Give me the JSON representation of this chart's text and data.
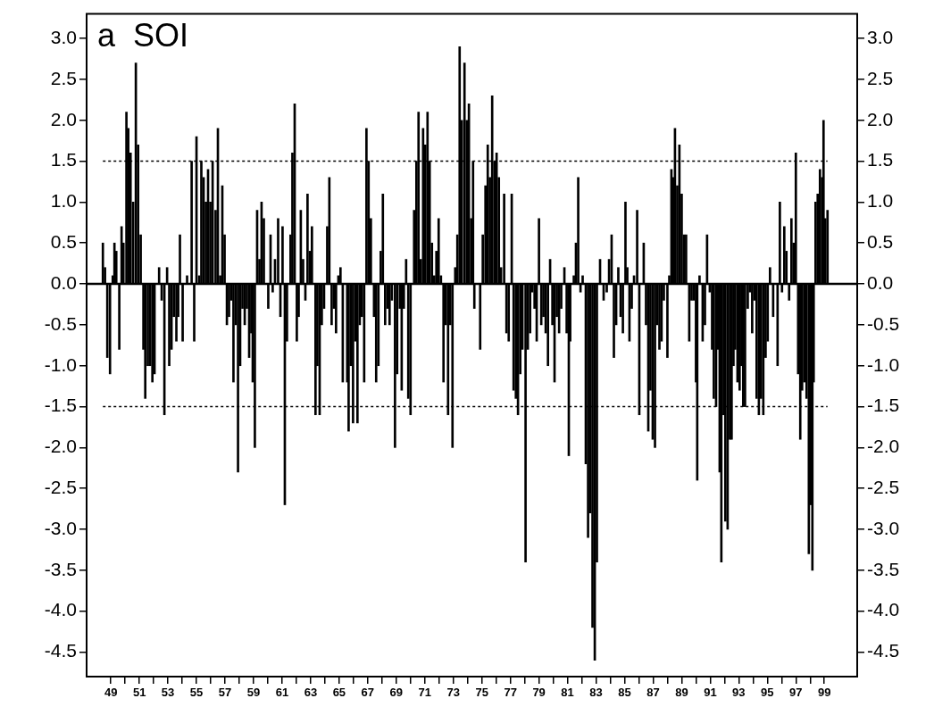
{
  "chart_data": {
    "type": "bar",
    "title": "a  SOI",
    "color": "#000000",
    "legend": false,
    "grid": false,
    "x": [
      1948.44,
      1948.59,
      1948.75,
      1948.94,
      1949.13,
      1949.25,
      1949.38,
      1949.59,
      1949.75,
      1949.88,
      1950.09,
      1950.22,
      1950.38,
      1950.56,
      1950.75,
      1950.91,
      1951.09,
      1951.28,
      1951.41,
      1951.59,
      1951.75,
      1951.91,
      1952.06,
      1952.38,
      1952.56,
      1952.75,
      1952.94,
      1953.09,
      1953.25,
      1953.41,
      1953.59,
      1953.72,
      1953.84,
      1954.03,
      1954.34,
      1954.66,
      1954.84,
      1955.0,
      1955.19,
      1955.34,
      1955.5,
      1955.66,
      1955.81,
      1955.97,
      1956.13,
      1956.34,
      1956.5,
      1956.66,
      1956.81,
      1956.97,
      1957.13,
      1957.28,
      1957.44,
      1957.59,
      1957.75,
      1957.91,
      1958.06,
      1958.22,
      1958.38,
      1958.53,
      1958.69,
      1958.84,
      1958.94,
      1959.09,
      1959.25,
      1959.41,
      1959.56,
      1959.72,
      1960.03,
      1960.19,
      1960.34,
      1960.5,
      1960.72,
      1960.88,
      1961.03,
      1961.19,
      1961.34,
      1961.59,
      1961.72,
      1961.88,
      1962.03,
      1962.16,
      1962.31,
      1962.47,
      1962.63,
      1962.78,
      1962.94,
      1963.09,
      1963.34,
      1963.47,
      1963.63,
      1963.78,
      1963.94,
      1964.16,
      1964.31,
      1964.47,
      1964.63,
      1964.78,
      1964.94,
      1965.09,
      1965.25,
      1965.56,
      1965.66,
      1965.81,
      1965.97,
      1966.13,
      1966.28,
      1966.44,
      1966.59,
      1966.75,
      1966.91,
      1967.06,
      1967.22,
      1967.44,
      1967.59,
      1967.75,
      1967.91,
      1968.06,
      1968.22,
      1968.38,
      1968.53,
      1968.69,
      1968.91,
      1969.06,
      1969.25,
      1969.38,
      1969.53,
      1969.69,
      1969.84,
      1970.0,
      1970.25,
      1970.41,
      1970.56,
      1970.72,
      1970.88,
      1971.03,
      1971.19,
      1971.34,
      1971.5,
      1971.66,
      1971.81,
      1971.97,
      1972.13,
      1972.31,
      1972.47,
      1972.63,
      1972.78,
      1972.94,
      1973.13,
      1973.28,
      1973.44,
      1973.59,
      1973.78,
      1973.94,
      1974.09,
      1974.25,
      1974.38,
      1974.47,
      1974.88,
      1975.06,
      1975.25,
      1975.41,
      1975.56,
      1975.72,
      1975.88,
      1976.03,
      1976.19,
      1976.34,
      1976.56,
      1976.72,
      1976.88,
      1977.09,
      1977.22,
      1977.38,
      1977.53,
      1977.69,
      1977.84,
      1978.06,
      1978.22,
      1978.38,
      1978.53,
      1978.69,
      1978.84,
      1979.0,
      1979.16,
      1979.31,
      1979.47,
      1979.63,
      1979.78,
      1979.94,
      1980.09,
      1980.25,
      1980.41,
      1980.56,
      1980.78,
      1980.94,
      1981.09,
      1981.19,
      1981.44,
      1981.59,
      1981.75,
      1981.91,
      1982.06,
      1982.28,
      1982.44,
      1982.59,
      1982.75,
      1982.91,
      1983.06,
      1983.28,
      1983.53,
      1983.75,
      1983.91,
      1984.09,
      1984.25,
      1984.41,
      1984.56,
      1984.72,
      1984.88,
      1985.06,
      1985.19,
      1985.34,
      1985.5,
      1985.66,
      1985.88,
      1986.03,
      1986.34,
      1986.5,
      1986.66,
      1986.81,
      1986.97,
      1987.13,
      1987.28,
      1987.44,
      1987.59,
      1987.75,
      1988.0,
      1988.13,
      1988.28,
      1988.41,
      1988.53,
      1988.69,
      1988.84,
      1989.0,
      1989.16,
      1989.31,
      1989.53,
      1989.69,
      1989.84,
      1990.0,
      1990.09,
      1990.25,
      1990.47,
      1990.63,
      1990.78,
      1990.97,
      1991.13,
      1991.25,
      1991.41,
      1991.56,
      1991.66,
      1991.78,
      1991.94,
      1992.06,
      1992.22,
      1992.38,
      1992.5,
      1992.63,
      1992.75,
      1992.91,
      1993.06,
      1993.19,
      1993.31,
      1993.44,
      1993.63,
      1993.78,
      1993.94,
      1994.09,
      1994.25,
      1994.41,
      1994.56,
      1994.72,
      1994.88,
      1995.03,
      1995.19,
      1995.41,
      1995.72,
      1995.88,
      1996.03,
      1996.19,
      1996.34,
      1996.53,
      1996.69,
      1996.84,
      1997.0,
      1997.16,
      1997.31,
      1997.44,
      1997.59,
      1997.75,
      1997.91,
      1998.03,
      1998.16,
      1998.25,
      1998.38,
      1998.53,
      1998.69,
      1998.84,
      1998.94,
      1999.06,
      1999.22
    ],
    "values": [
      0.5,
      0.2,
      -0.9,
      -1.1,
      0.1,
      0.5,
      0.4,
      -0.8,
      0.7,
      0.5,
      2.1,
      1.9,
      1.6,
      1.0,
      2.7,
      1.7,
      0.6,
      -0.8,
      -1.4,
      -1.0,
      -1.0,
      -1.2,
      -1.1,
      0.2,
      -0.2,
      -1.6,
      0.2,
      -1.0,
      -0.8,
      -0.4,
      -0.7,
      -0.4,
      0.6,
      -0.7,
      0.1,
      1.5,
      -0.7,
      1.8,
      0.1,
      1.5,
      1.3,
      1.0,
      1.4,
      1.0,
      1.5,
      0.9,
      1.9,
      0.1,
      1.2,
      0.6,
      -0.5,
      -0.4,
      -0.2,
      -1.2,
      -0.5,
      -2.3,
      -1.0,
      -0.3,
      -0.5,
      -0.3,
      -0.9,
      -0.6,
      -1.2,
      -2.0,
      0.9,
      0.3,
      1.0,
      0.8,
      -0.3,
      0.6,
      -0.1,
      0.3,
      0.8,
      -0.4,
      0.7,
      -2.7,
      -0.7,
      0.6,
      1.6,
      2.2,
      -0.7,
      -0.4,
      0.9,
      0.3,
      -0.2,
      1.1,
      0.4,
      0.7,
      -1.6,
      -1.0,
      -1.6,
      -0.5,
      -0.3,
      0.7,
      1.3,
      -0.5,
      -0.3,
      -0.6,
      0.1,
      0.2,
      -1.2,
      -1.2,
      -1.8,
      -1.0,
      -1.7,
      -0.7,
      -1.7,
      -0.5,
      -0.4,
      -1.2,
      1.9,
      1.5,
      0.8,
      -0.4,
      -1.2,
      -1.0,
      0.4,
      1.1,
      -0.5,
      -0.3,
      -0.5,
      -0.2,
      -2.0,
      -1.1,
      -0.3,
      -1.3,
      -0.3,
      0.3,
      -1.4,
      -1.6,
      0.9,
      1.5,
      2.1,
      0.3,
      1.9,
      1.7,
      2.1,
      1.5,
      0.5,
      0.1,
      0.4,
      0.8,
      0.1,
      -1.2,
      -0.5,
      -1.6,
      -0.5,
      -2.0,
      0.2,
      0.6,
      2.9,
      2.0,
      2.7,
      2.0,
      2.2,
      0.8,
      1.5,
      -0.3,
      -0.8,
      0.6,
      1.2,
      1.7,
      1.3,
      2.3,
      1.5,
      1.6,
      1.3,
      0.2,
      1.1,
      -0.6,
      -0.7,
      1.1,
      -1.3,
      -1.4,
      -1.6,
      -1.1,
      -0.8,
      -3.4,
      -0.8,
      -0.6,
      -0.1,
      -0.3,
      -0.7,
      0.8,
      -0.5,
      -0.4,
      -0.6,
      -1.0,
      0.3,
      -0.5,
      -1.2,
      -0.4,
      -0.6,
      -0.3,
      0.2,
      -0.6,
      -2.1,
      -0.7,
      0.1,
      0.5,
      1.3,
      -0.1,
      0.1,
      -2.2,
      -3.1,
      -2.8,
      -4.2,
      -4.6,
      -3.4,
      0.3,
      -0.2,
      -0.1,
      0.3,
      0.6,
      -0.9,
      -0.5,
      0.2,
      -0.4,
      -0.6,
      1.0,
      0.2,
      -0.7,
      -0.3,
      0.1,
      0.9,
      -1.6,
      0.5,
      -0.5,
      -1.8,
      -1.3,
      -1.9,
      -2.0,
      -0.5,
      -0.8,
      -0.7,
      -0.2,
      -0.9,
      0.1,
      1.4,
      1.3,
      1.9,
      1.2,
      1.7,
      1.1,
      0.6,
      0.6,
      -0.7,
      -0.2,
      -0.2,
      -1.2,
      -2.4,
      0.1,
      -0.7,
      -0.5,
      0.6,
      -0.1,
      -0.8,
      -1.4,
      -1.5,
      -0.8,
      -2.3,
      -3.4,
      -1.6,
      -2.9,
      -3.0,
      -1.9,
      -1.9,
      -1.0,
      -0.8,
      -1.2,
      -1.3,
      -1.0,
      -1.5,
      -1.5,
      -0.3,
      -0.1,
      -0.6,
      -0.2,
      -1.4,
      -1.6,
      -1.4,
      -1.6,
      -0.9,
      -0.7,
      0.2,
      -0.4,
      -1.0,
      1.0,
      -0.1,
      0.7,
      0.4,
      -0.2,
      0.8,
      0.5,
      1.6,
      -1.1,
      -1.9,
      -1.3,
      -1.2,
      -1.4,
      -3.3,
      -2.7,
      -3.5,
      -1.2,
      1.0,
      1.1,
      1.4,
      1.3,
      2.0,
      0.8,
      0.9
    ],
    "xlim": [
      1947.3,
      2001.3
    ],
    "xticks": [
      {
        "value": 1949,
        "label": "49"
      },
      {
        "value": 1950,
        "label": null
      },
      {
        "value": 1951,
        "label": "51"
      },
      {
        "value": 1952,
        "label": null
      },
      {
        "value": 1953,
        "label": "53"
      },
      {
        "value": 1954,
        "label": null
      },
      {
        "value": 1955,
        "label": "55"
      },
      {
        "value": 1956,
        "label": null
      },
      {
        "value": 1957,
        "label": "57"
      },
      {
        "value": 1958,
        "label": null
      },
      {
        "value": 1959,
        "label": "59"
      },
      {
        "value": 1960,
        "label": null
      },
      {
        "value": 1961,
        "label": "61"
      },
      {
        "value": 1962,
        "label": null
      },
      {
        "value": 1963,
        "label": "63"
      },
      {
        "value": 1964,
        "label": null
      },
      {
        "value": 1965,
        "label": "65"
      },
      {
        "value": 1966,
        "label": null
      },
      {
        "value": 1967,
        "label": "67"
      },
      {
        "value": 1968,
        "label": null
      },
      {
        "value": 1969,
        "label": "69"
      },
      {
        "value": 1970,
        "label": null
      },
      {
        "value": 1971,
        "label": "71"
      },
      {
        "value": 1972,
        "label": null
      },
      {
        "value": 1973,
        "label": "73"
      },
      {
        "value": 1974,
        "label": null
      },
      {
        "value": 1975,
        "label": "75"
      },
      {
        "value": 1976,
        "label": null
      },
      {
        "value": 1977,
        "label": "77"
      },
      {
        "value": 1978,
        "label": null
      },
      {
        "value": 1979,
        "label": "79"
      },
      {
        "value": 1980,
        "label": null
      },
      {
        "value": 1981,
        "label": "81"
      },
      {
        "value": 1982,
        "label": null
      },
      {
        "value": 1983,
        "label": "83"
      },
      {
        "value": 1984,
        "label": null
      },
      {
        "value": 1985,
        "label": "85"
      },
      {
        "value": 1986,
        "label": null
      },
      {
        "value": 1987,
        "label": "87"
      },
      {
        "value": 1988,
        "label": null
      },
      {
        "value": 1989,
        "label": "89"
      },
      {
        "value": 1990,
        "label": null
      },
      {
        "value": 1991,
        "label": "91"
      },
      {
        "value": 1992,
        "label": null
      },
      {
        "value": 1993,
        "label": "93"
      },
      {
        "value": 1994,
        "label": null
      },
      {
        "value": 1995,
        "label": "95"
      },
      {
        "value": 1996,
        "label": null
      },
      {
        "value": 1997,
        "label": "97"
      },
      {
        "value": 1998,
        "label": null
      },
      {
        "value": 1999,
        "label": "99"
      }
    ],
    "ylim": [
      -4.8,
      3.3
    ],
    "yticks": [
      {
        "value": 3,
        "label": "3.0"
      },
      2.5,
      {
        "value": 2,
        "label": "2.0"
      },
      1.5,
      {
        "value": 1,
        "label": "1.0"
      },
      0.5,
      {
        "value": 0,
        "label": "0.0"
      },
      -0.5,
      {
        "value": -1,
        "label": "-1.0"
      },
      -1.5,
      {
        "value": -2,
        "label": "-2.0"
      },
      -2.5,
      {
        "value": -3,
        "label": "-3.0"
      },
      -3.5,
      {
        "value": -4,
        "label": "-4.0"
      },
      -4.5
    ],
    "y2lim": [
      -4.8,
      3.3
    ],
    "y2ticks": [
      {
        "value": 3,
        "label": "3.0"
      },
      2.5,
      {
        "value": 2,
        "label": "2.0"
      },
      1.5,
      {
        "value": 1,
        "label": "1.0"
      },
      0.5,
      {
        "value": 0,
        "label": "0.0"
      },
      -0.5,
      {
        "value": -1,
        "label": "-1.0"
      },
      -1.5,
      {
        "value": -2,
        "label": "-2.0"
      },
      -2.5,
      {
        "value": -3,
        "label": "-3.0"
      },
      -3.5,
      {
        "value": -4,
        "label": "-4.0"
      },
      -4.5
    ],
    "ref_lines": [
      {
        "axis": "y",
        "value": 1.5,
        "line_style": "dotted"
      },
      {
        "axis": "y",
        "value": -1.5,
        "line_style": "dotted"
      }
    ]
  }
}
